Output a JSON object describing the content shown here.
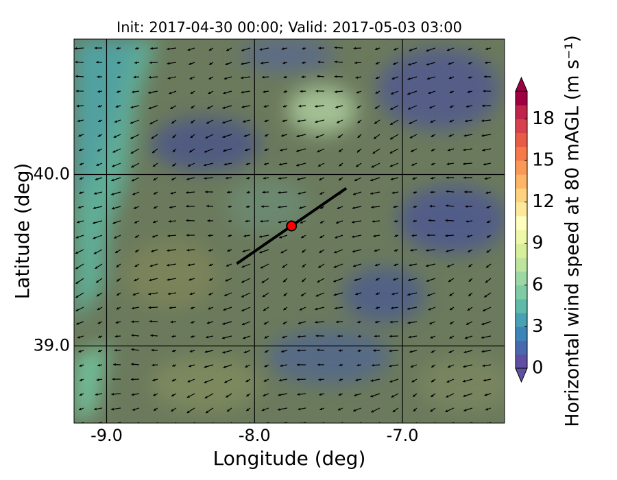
{
  "chart_data": {
    "type": "map",
    "title": "Init: 2017-04-30 00:00; Valid: 2017-05-03 03:00",
    "xlabel": "Longitude (deg)",
    "ylabel": "Latitude (deg)",
    "xlim": [
      -9.22,
      -6.31
    ],
    "ylim": [
      38.55,
      40.79
    ],
    "xticks": [
      {
        "value": -9,
        "label": "-9.0"
      },
      {
        "value": -8,
        "label": "-8.0"
      },
      {
        "value": -7,
        "label": "-7.0"
      }
    ],
    "yticks": [
      {
        "value": 39,
        "label": "39.0"
      },
      {
        "value": 40,
        "label": "40.0"
      }
    ],
    "grid": true,
    "site": {
      "lon": -7.75,
      "lat": 39.7,
      "color": "#ff0000"
    },
    "transect": {
      "lon": [
        -8.12,
        -7.38
      ],
      "lat": [
        39.48,
        39.92
      ],
      "color": "#000000"
    },
    "colorbar": {
      "label": "Horizontal wind speed at 80 mAGL (m s⁻¹)",
      "lim": [
        0,
        20
      ],
      "ticks": [
        0,
        3,
        6,
        9,
        12,
        15,
        18
      ],
      "colors": [
        "#5e4fa2",
        "#4a68ad",
        "#3d84b8",
        "#48a0b2",
        "#60b9a9",
        "#7fcba4",
        "#9dd8a4",
        "#bde5a0",
        "#d7ef9b",
        "#eef8a8",
        "#fffebe",
        "#fee99b",
        "#fed27f",
        "#fdb567",
        "#fa9857",
        "#f67a49",
        "#e75b47",
        "#d7404e",
        "#bf254a",
        "#9e0142"
      ]
    }
  }
}
